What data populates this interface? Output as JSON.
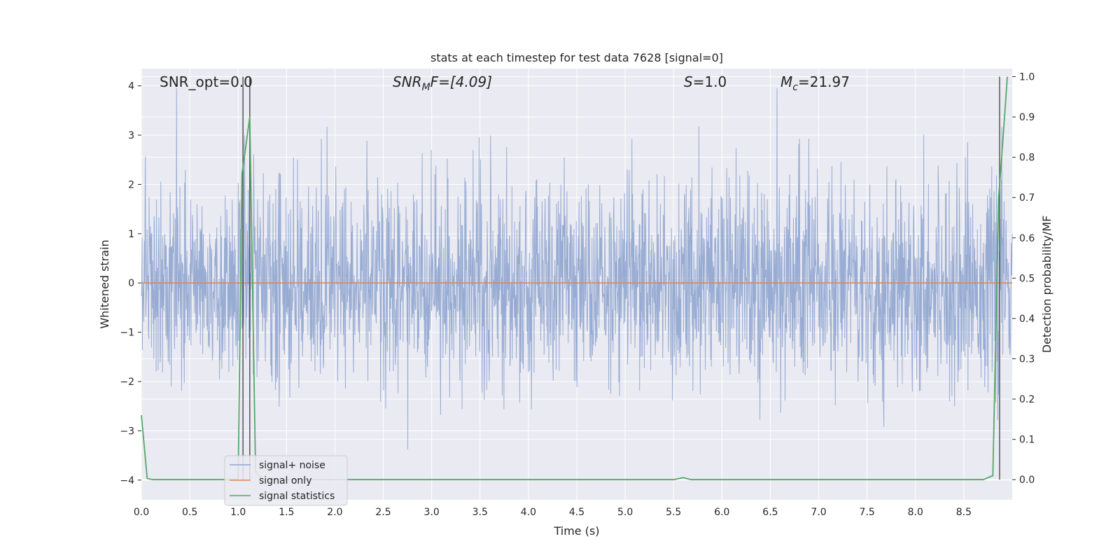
{
  "chart_data": {
    "type": "line",
    "title": "stats at each timestep for test data 7628 [signal=0]",
    "xlabel": "Time (s)",
    "ylabel_left": "Whitened strain",
    "ylabel_right": "Detection probability/MF",
    "xlim": [
      0.0,
      9.0
    ],
    "ylim_left": [
      -4.4,
      4.35
    ],
    "ylim_right": [
      -0.05,
      1.02
    ],
    "x_ticks": [
      "0.0",
      "0.5",
      "1.0",
      "1.5",
      "2.0",
      "2.5",
      "3.0",
      "3.5",
      "4.0",
      "4.5",
      "5.0",
      "5.5",
      "6.0",
      "6.5",
      "7.0",
      "7.5",
      "8.0",
      "8.5"
    ],
    "y_ticks_left": [
      "4",
      "3",
      "2",
      "1",
      "0",
      "−1",
      "−2",
      "−3",
      "−4"
    ],
    "y_ticks_right": [
      "1.0",
      "0.9",
      "0.8",
      "0.7",
      "0.6",
      "0.5",
      "0.4",
      "0.3",
      "0.2",
      "0.1",
      "0.0"
    ],
    "grid": true,
    "legend_position": "lower-left",
    "annotations": {
      "snr_opt": "SNR_opt=0.0",
      "snr_mf_prefix": "SNR",
      "snr_mf_sub": "M",
      "snr_mf_rest": "F=[4.09]",
      "s_prefix": "S",
      "s_rest": "=1.0",
      "mc_prefix": "M",
      "mc_sub": "c",
      "mc_rest": "=21.97"
    },
    "series": [
      {
        "name": "signal+ noise",
        "color": "#8fa5cf",
        "description_values": "whitened noise, approx. zero-mean, spread between -4 and 4"
      },
      {
        "name": "signal only",
        "color": "#dd8452",
        "x": [
          0.0,
          9.0
        ],
        "y": [
          0.0,
          0.0
        ]
      },
      {
        "name": "signal statistics",
        "color": "#55a868",
        "axis": "right",
        "x": [
          0.0,
          0.06,
          0.12,
          0.5,
          1.0,
          1.0,
          1.04,
          1.07,
          1.12,
          1.18,
          1.25,
          2.0,
          3.0,
          4.0,
          5.0,
          5.5,
          5.6,
          5.68,
          6.0,
          7.0,
          8.0,
          8.7,
          8.8,
          8.86,
          8.9,
          8.95
        ],
        "y": [
          0.16,
          0.003,
          0.0,
          0.0,
          0.0,
          0.0,
          0.76,
          0.81,
          0.9,
          0.02,
          0.0,
          0.0,
          0.0,
          0.0,
          0.0,
          0.0,
          0.005,
          0.0,
          0.0,
          0.0,
          0.0,
          0.0,
          0.01,
          0.7,
          0.83,
          1.0
        ]
      }
    ],
    "vertical_markers_x": [
      1.05,
      1.12,
      8.87
    ]
  },
  "colors": {
    "plot_background": "#eaeaf2",
    "grid": "#ffffff",
    "marker_line": "#555555"
  }
}
